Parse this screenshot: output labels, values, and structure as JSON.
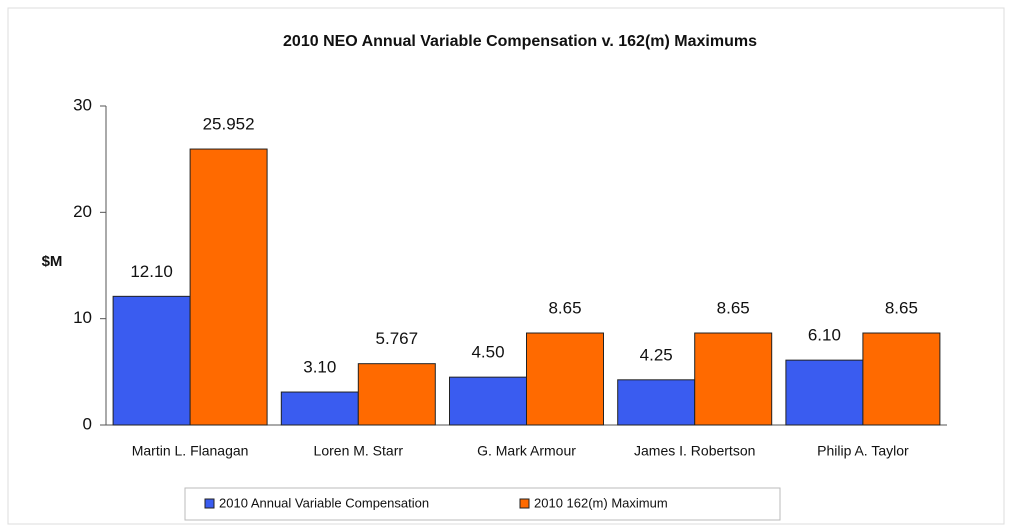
{
  "chart_data": {
    "type": "bar",
    "title": "2010 NEO Annual Variable Compensation v. 162(m) Maximums",
    "y_label": "$M",
    "categories": [
      "Martin L. Flanagan",
      "Loren M. Starr",
      "G. Mark Armour",
      "James I. Robertson",
      "Philip A. Taylor"
    ],
    "series": [
      {
        "name": "2010 Annual Variable Compensation",
        "color": "#3a5cf0",
        "values": [
          12.1,
          3.1,
          4.5,
          4.25,
          6.1
        ],
        "value_labels": [
          "12.10",
          "3.10",
          "4.50",
          "4.25",
          "6.10"
        ]
      },
      {
        "name": "2010 162(m) Maximum",
        "color": "#ff6a00",
        "values": [
          25.952,
          5.767,
          8.65,
          8.65,
          8.65
        ]
      }
    ],
    "ylim": [
      0,
      30
    ],
    "yticks": [
      0,
      10,
      20,
      30
    ],
    "grid": false,
    "legend": "bottom"
  }
}
